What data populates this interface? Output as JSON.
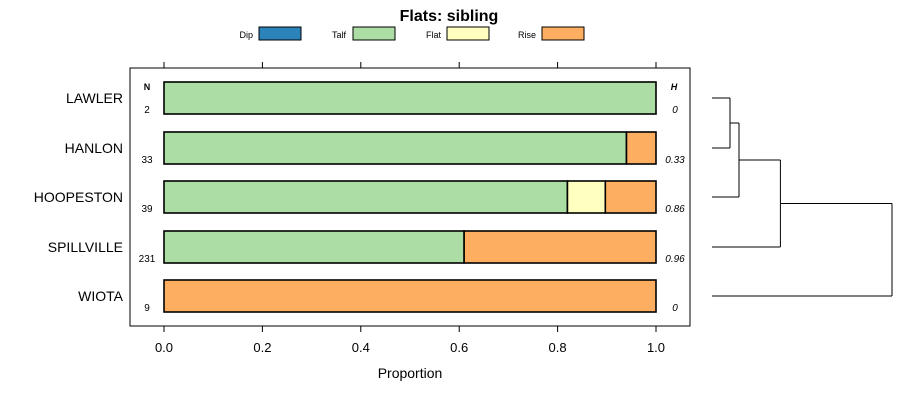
{
  "chart_data": {
    "type": "stacked-bar-horizontal",
    "title": "Flats: sibling",
    "xlabel": "Proportion",
    "ylabel": "",
    "xlim": [
      0,
      1
    ],
    "x_ticks": [
      0.0,
      0.2,
      0.4,
      0.6,
      0.8,
      1.0
    ],
    "x_tick_labels": [
      "0.0",
      "0.2",
      "0.4",
      "0.6",
      "0.8",
      "1.0"
    ],
    "legend": {
      "placement": "top",
      "entries": [
        {
          "name": "Dip",
          "color": "#2b83ba"
        },
        {
          "name": "Talf",
          "color": "#abdda4"
        },
        {
          "name": "Flat",
          "color": "#ffffbf"
        },
        {
          "name": "Rise",
          "color": "#fdae61"
        }
      ]
    },
    "n_header": "N",
    "h_header": "H",
    "categories": [
      "LAWLER",
      "HANLON",
      "HOOPESTON",
      "SPILLVILLE",
      "WIOTA"
    ],
    "n_values": [
      "2",
      "33",
      "39",
      "231",
      "9"
    ],
    "h_values": [
      "0",
      "0.33",
      "0.86",
      "0.96",
      "0"
    ],
    "series": [
      {
        "name": "Dip",
        "values": [
          0,
          0,
          0,
          0,
          0
        ]
      },
      {
        "name": "Talf",
        "values": [
          1.0,
          0.94,
          0.82,
          0.61,
          0
        ]
      },
      {
        "name": "Flat",
        "values": [
          0,
          0,
          0.077,
          0,
          0
        ]
      },
      {
        "name": "Rise",
        "values": [
          0,
          0.06,
          0.103,
          0.39,
          1.0
        ]
      }
    ],
    "dendrogram": {
      "merges": [
        {
          "a": "LAWLER",
          "b": "HANLON",
          "height": 0.1
        },
        {
          "a": "LAWLER+HANLON",
          "b": "HOOPESTON",
          "height": 0.15
        },
        {
          "a": "LAWLER+HANLON+HOOPESTON",
          "b": "SPILLVILLE",
          "height": 0.38
        },
        {
          "a": "LAWLER+HANLON+HOOPESTON+SPILLVILLE",
          "b": "WIOTA",
          "height": 1.0
        }
      ]
    }
  }
}
